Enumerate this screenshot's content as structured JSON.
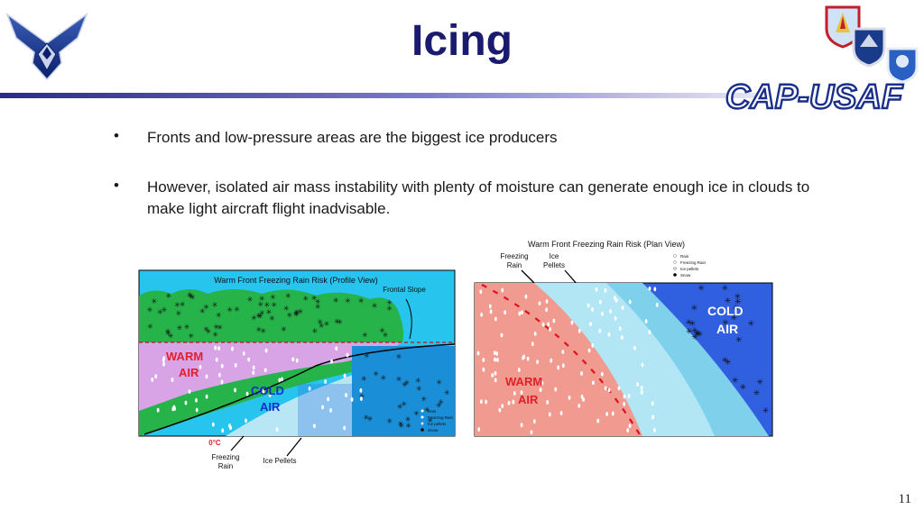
{
  "title": "Icing",
  "brand": {
    "wordmark": "CAP-USAF"
  },
  "bullets": [
    {
      "marker": "•",
      "text": "Fronts and low-pressure areas are the biggest ice producers"
    },
    {
      "marker": "•",
      "text": "However, isolated air mass instability with plenty of moisture can generate enough ice in clouds to make light aircraft flight inadvisable."
    }
  ],
  "profile_figure": {
    "title": "Warm Front Freezing Rain Risk (Profile View)",
    "frontal_slope": "Frontal Slope",
    "warm_air": [
      "WARM",
      "AIR"
    ],
    "cold_air": [
      "COLD",
      "AIR"
    ],
    "zero_c": "0°C",
    "freezing_rain": [
      "Freezing",
      "Rain"
    ],
    "ice_pellets": "Ice Pellets",
    "legend": [
      "Rain",
      "Freezing Rain",
      "Ice pellets",
      "Snow"
    ]
  },
  "plan_figure": {
    "title": "Warm Front Freezing Rain Risk (Plan View)",
    "freezing_rain": [
      "Freezing",
      "Rain"
    ],
    "ice_pellets": [
      "Ice",
      "Pellets"
    ],
    "warm_air": [
      "WARM",
      "AIR"
    ],
    "cold_air": [
      "COLD",
      "AIR"
    ],
    "legend": [
      "Rain",
      "Freezing Rain",
      "Ice pellets",
      "Snow"
    ]
  },
  "page_number": "11",
  "colors": {
    "title": "#1a1a6e",
    "warm_air": "#e0202a",
    "cold_air": "#1030d0",
    "sky": "#27c4ee",
    "cloud_green": "#26b34a",
    "warm_pink": "#f09a90",
    "snow_blue": "#3060e0"
  }
}
